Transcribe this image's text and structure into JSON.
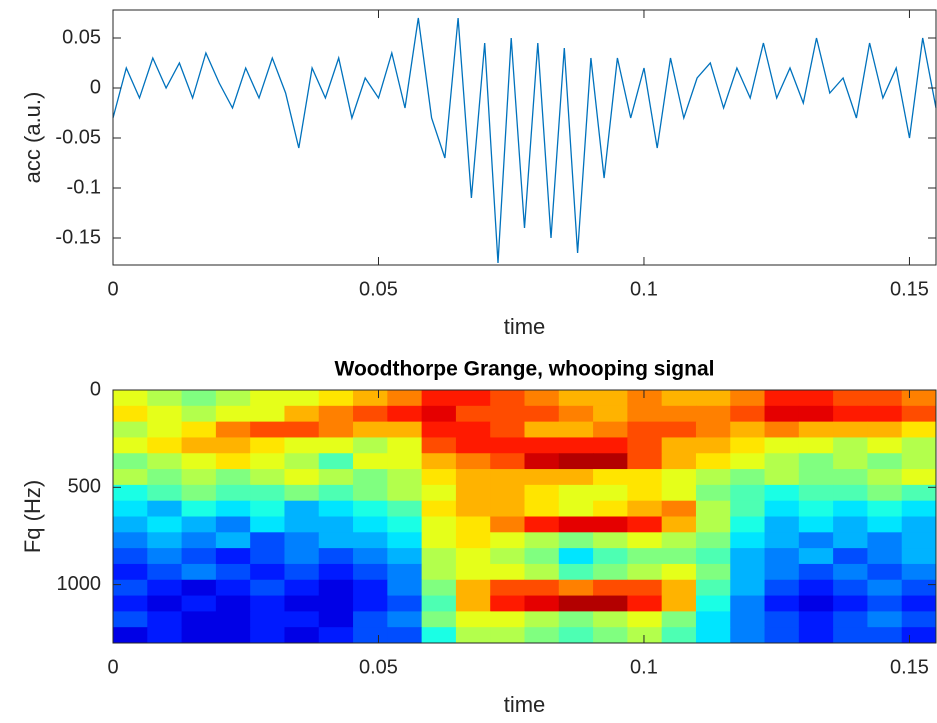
{
  "chart_data": [
    {
      "type": "line",
      "xlabel": "time",
      "ylabel": "acc (a.u.)",
      "color": "#0072bd",
      "x": [
        0,
        0.0025,
        0.005,
        0.0075,
        0.01,
        0.0125,
        0.015,
        0.0175,
        0.02,
        0.0225,
        0.025,
        0.0275,
        0.03,
        0.0325,
        0.035,
        0.0375,
        0.04,
        0.0425,
        0.045,
        0.0475,
        0.05,
        0.0525,
        0.055,
        0.0575,
        0.06,
        0.0625,
        0.065,
        0.0675,
        0.07,
        0.0725,
        0.075,
        0.0775,
        0.08,
        0.0825,
        0.085,
        0.0875,
        0.09,
        0.0925,
        0.095,
        0.0975,
        0.1,
        0.1025,
        0.105,
        0.1075,
        0.11,
        0.1125,
        0.115,
        0.1175,
        0.12,
        0.1225,
        0.125,
        0.1275,
        0.13,
        0.1325,
        0.135,
        0.1375,
        0.14,
        0.1425,
        0.145,
        0.1475,
        0.15,
        0.1525,
        0.155
      ],
      "values": [
        -0.03,
        0.02,
        -0.01,
        0.03,
        0,
        0.025,
        -0.01,
        0.035,
        0.005,
        -0.02,
        0.02,
        -0.01,
        0.03,
        -0.005,
        -0.06,
        0.02,
        -0.01,
        0.03,
        -0.03,
        0.01,
        -0.01,
        0.035,
        -0.02,
        0.07,
        -0.03,
        -0.07,
        0.07,
        -0.11,
        0.045,
        -0.175,
        0.05,
        -0.14,
        0.045,
        -0.15,
        0.04,
        -0.165,
        0.03,
        -0.09,
        0.03,
        -0.03,
        0.02,
        -0.06,
        0.03,
        -0.03,
        0.01,
        0.025,
        -0.02,
        0.02,
        -0.01,
        0.045,
        -0.01,
        0.02,
        -0.015,
        0.05,
        -0.005,
        0.01,
        -0.03,
        0.045,
        -0.01,
        0.02,
        -0.05,
        0.05,
        -0.02
      ],
      "xlim": [
        0,
        0.155
      ],
      "ylim": [
        -0.177,
        0.078
      ],
      "xticks": [
        0,
        0.05,
        0.1,
        0.15
      ],
      "yticks": [
        -0.15,
        -0.1,
        -0.05,
        0,
        0.05
      ]
    },
    {
      "type": "heatmap",
      "title": "Woodthorpe Grange, whooping signal",
      "xlabel": "time",
      "ylabel": "Fq (Hz)",
      "colormap": "jet",
      "zlim": [
        0,
        1
      ],
      "y_reversed": true,
      "xlim": [
        0,
        0.155
      ],
      "ylim": [
        0,
        1300
      ],
      "xticks": [
        0,
        0.05,
        0.1,
        0.15
      ],
      "yticks": [
        0,
        500,
        1000
      ],
      "z": [
        [
          0.6,
          0.55,
          0.5,
          0.55,
          0.6,
          0.6,
          0.65,
          0.7,
          0.75,
          0.85,
          0.85,
          0.8,
          0.75,
          0.7,
          0.7,
          0.75,
          0.7,
          0.7,
          0.75,
          0.85,
          0.85,
          0.8,
          0.8,
          0.75
        ],
        [
          0.65,
          0.6,
          0.55,
          0.6,
          0.6,
          0.7,
          0.75,
          0.8,
          0.85,
          0.9,
          0.8,
          0.8,
          0.8,
          0.75,
          0.7,
          0.75,
          0.75,
          0.75,
          0.8,
          0.9,
          0.9,
          0.85,
          0.85,
          0.8
        ],
        [
          0.55,
          0.6,
          0.65,
          0.75,
          0.8,
          0.8,
          0.75,
          0.7,
          0.7,
          0.85,
          0.85,
          0.8,
          0.7,
          0.7,
          0.75,
          0.8,
          0.8,
          0.75,
          0.7,
          0.75,
          0.7,
          0.7,
          0.7,
          0.65
        ],
        [
          0.6,
          0.65,
          0.7,
          0.7,
          0.65,
          0.6,
          0.6,
          0.55,
          0.6,
          0.8,
          0.85,
          0.85,
          0.85,
          0.85,
          0.85,
          0.8,
          0.7,
          0.7,
          0.65,
          0.6,
          0.6,
          0.55,
          0.6,
          0.55
        ],
        [
          0.5,
          0.55,
          0.6,
          0.65,
          0.6,
          0.55,
          0.45,
          0.6,
          0.6,
          0.7,
          0.75,
          0.8,
          0.92,
          0.95,
          0.95,
          0.8,
          0.7,
          0.65,
          0.6,
          0.55,
          0.5,
          0.55,
          0.5,
          0.55
        ],
        [
          0.55,
          0.5,
          0.55,
          0.5,
          0.55,
          0.6,
          0.55,
          0.5,
          0.55,
          0.65,
          0.7,
          0.7,
          0.7,
          0.7,
          0.65,
          0.65,
          0.6,
          0.55,
          0.5,
          0.55,
          0.5,
          0.5,
          0.55,
          0.6
        ],
        [
          0.4,
          0.45,
          0.5,
          0.45,
          0.45,
          0.5,
          0.45,
          0.5,
          0.55,
          0.6,
          0.7,
          0.7,
          0.65,
          0.6,
          0.6,
          0.65,
          0.6,
          0.5,
          0.45,
          0.4,
          0.45,
          0.45,
          0.5,
          0.45
        ],
        [
          0.35,
          0.3,
          0.4,
          0.35,
          0.4,
          0.3,
          0.35,
          0.4,
          0.45,
          0.65,
          0.7,
          0.7,
          0.65,
          0.6,
          0.65,
          0.7,
          0.75,
          0.55,
          0.45,
          0.35,
          0.4,
          0.35,
          0.4,
          0.35
        ],
        [
          0.3,
          0.35,
          0.3,
          0.25,
          0.35,
          0.3,
          0.3,
          0.35,
          0.4,
          0.6,
          0.65,
          0.75,
          0.85,
          0.9,
          0.9,
          0.85,
          0.7,
          0.55,
          0.4,
          0.3,
          0.35,
          0.3,
          0.35,
          0.3
        ],
        [
          0.25,
          0.3,
          0.25,
          0.3,
          0.2,
          0.25,
          0.3,
          0.3,
          0.35,
          0.6,
          0.65,
          0.6,
          0.55,
          0.5,
          0.55,
          0.6,
          0.55,
          0.5,
          0.35,
          0.3,
          0.25,
          0.3,
          0.25,
          0.3
        ],
        [
          0.2,
          0.25,
          0.2,
          0.15,
          0.2,
          0.25,
          0.2,
          0.25,
          0.3,
          0.55,
          0.6,
          0.55,
          0.5,
          0.35,
          0.45,
          0.5,
          0.5,
          0.45,
          0.3,
          0.25,
          0.3,
          0.2,
          0.25,
          0.3
        ],
        [
          0.15,
          0.2,
          0.25,
          0.2,
          0.15,
          0.2,
          0.15,
          0.2,
          0.25,
          0.55,
          0.6,
          0.6,
          0.55,
          0.45,
          0.5,
          0.55,
          0.6,
          0.5,
          0.3,
          0.25,
          0.2,
          0.25,
          0.2,
          0.25
        ],
        [
          0.2,
          0.15,
          0.1,
          0.15,
          0.2,
          0.15,
          0.1,
          0.15,
          0.25,
          0.5,
          0.7,
          0.8,
          0.8,
          0.75,
          0.8,
          0.8,
          0.7,
          0.45,
          0.3,
          0.2,
          0.15,
          0.2,
          0.25,
          0.2
        ],
        [
          0.15,
          0.1,
          0.15,
          0.1,
          0.15,
          0.1,
          0.1,
          0.15,
          0.2,
          0.45,
          0.7,
          0.85,
          0.9,
          0.95,
          0.95,
          0.85,
          0.7,
          0.4,
          0.25,
          0.15,
          0.1,
          0.15,
          0.2,
          0.15
        ],
        [
          0.2,
          0.15,
          0.1,
          0.1,
          0.15,
          0.15,
          0.1,
          0.2,
          0.25,
          0.5,
          0.6,
          0.6,
          0.55,
          0.5,
          0.55,
          0.6,
          0.5,
          0.35,
          0.25,
          0.2,
          0.15,
          0.2,
          0.25,
          0.2
        ],
        [
          0.1,
          0.15,
          0.1,
          0.1,
          0.15,
          0.1,
          0.15,
          0.2,
          0.2,
          0.4,
          0.55,
          0.55,
          0.5,
          0.45,
          0.5,
          0.55,
          0.45,
          0.35,
          0.25,
          0.2,
          0.15,
          0.2,
          0.2,
          0.15
        ]
      ]
    }
  ]
}
